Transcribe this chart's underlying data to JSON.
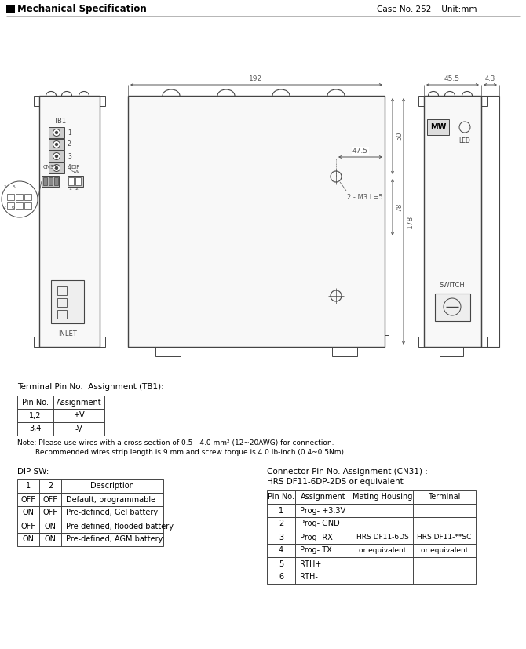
{
  "title": "Mechanical Specification",
  "case_info": "Case No. 252    Unit:mm",
  "bg_color": "#ffffff",
  "line_color": "#444444",
  "dim_color": "#555555",
  "dim_192": "192",
  "dim_45_5": "45.5",
  "dim_4_3": "4.3",
  "dim_50": "50",
  "dim_78": "78",
  "dim_178": "178",
  "dim_47_5": "47.5",
  "dim_2m3l5": "2 - M3 L=5",
  "tb1_title": "Terminal Pin No.  Assignment (TB1):",
  "tb1_headers": [
    "Pin No.",
    "Assignment"
  ],
  "tb1_rows": [
    [
      "1,2",
      "+V"
    ],
    [
      "3,4",
      "-V"
    ]
  ],
  "note_line1": "Note: Please use wires with a cross section of 0.5 - 4.0 mm² (12~20AWG) for connection.",
  "note_line2": "        Recommended wires strip length is 9 mm and screw torque is 4.0 lb-inch (0.4~0.5Nm).",
  "dip_title": "DIP SW:",
  "dip_headers": [
    "1",
    "2",
    "Description"
  ],
  "dip_rows": [
    [
      "OFF",
      "OFF",
      "Default, programmable"
    ],
    [
      "ON",
      "OFF",
      "Pre-defined, Gel battery"
    ],
    [
      "OFF",
      "ON",
      "Pre-defined, flooded battery"
    ],
    [
      "ON",
      "ON",
      "Pre-defined, AGM battery"
    ]
  ],
  "cn31_title1": "Connector Pin No. Assignment (CN31) :",
  "cn31_title2": "HRS DF11-6DP-2DS or equivalent",
  "cn31_headers": [
    "Pin No.",
    "Assignment",
    "Mating Housing",
    "Terminal"
  ],
  "cn31_rows": [
    [
      "1",
      "Prog- +3.3V",
      "",
      ""
    ],
    [
      "2",
      "Prog- GND",
      "",
      ""
    ],
    [
      "3",
      "Prog- RX",
      "HRS DF11-6DS",
      "HRS DF11-**SC"
    ],
    [
      "4",
      "Prog- TX",
      "or equivalent",
      "or equivalent"
    ],
    [
      "5",
      "RTH+",
      "",
      ""
    ],
    [
      "6",
      "RTH-",
      "",
      ""
    ]
  ]
}
